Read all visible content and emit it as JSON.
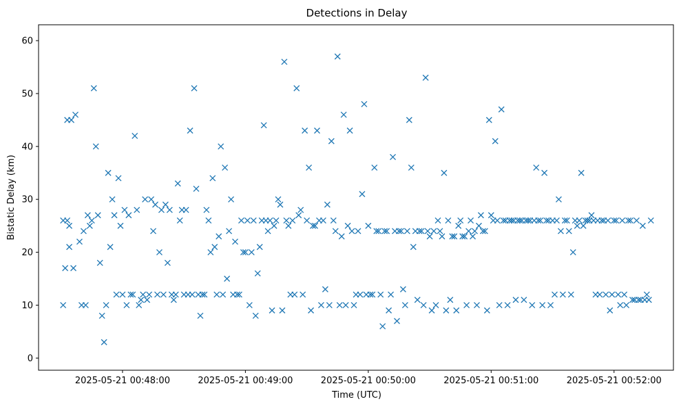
{
  "chart_data": {
    "type": "scatter",
    "title": "Detections in Delay",
    "xlabel": "Time (UTC)",
    "ylabel": "Bistatic Delay (km)",
    "marker": "x",
    "color": "#1f77b4",
    "grid": false,
    "legend": "none",
    "xlim": [
      "2025-05-21 00:47:19",
      "2025-05-21 00:52:29"
    ],
    "ylim": [
      -2.3,
      63
    ],
    "x_ticks": [
      "2025-05-21 00:48:00",
      "2025-05-21 00:49:00",
      "2025-05-21 00:50:00",
      "2025-05-21 00:51:00",
      "2025-05-21 00:52:00"
    ],
    "y_ticks": [
      0,
      10,
      20,
      30,
      40,
      50,
      60
    ],
    "series": [
      {
        "x": [
          "00:47:31",
          "00:47:31",
          "00:47:32",
          "00:47:33",
          "00:47:33",
          "00:47:34",
          "00:47:34",
          "00:47:35",
          "00:47:36",
          "00:47:37",
          "00:47:39",
          "00:47:40",
          "00:47:41",
          "00:47:42",
          "00:47:43",
          "00:47:44",
          "00:47:45",
          "00:47:46",
          "00:47:47",
          "00:47:48",
          "00:47:49",
          "00:47:50",
          "00:47:51",
          "00:47:52",
          "00:47:53",
          "00:47:54",
          "00:47:55",
          "00:47:56",
          "00:47:57",
          "00:47:58",
          "00:47:59",
          "00:48:00",
          "00:48:01",
          "00:48:02",
          "00:48:03",
          "00:48:04",
          "00:48:05",
          "00:48:06",
          "00:48:07",
          "00:48:08",
          "00:48:09",
          "00:48:10",
          "00:48:11",
          "00:48:12",
          "00:48:13",
          "00:48:14",
          "00:48:15",
          "00:48:16",
          "00:48:17",
          "00:48:18",
          "00:48:19",
          "00:48:20",
          "00:48:21",
          "00:48:22",
          "00:48:23",
          "00:48:24",
          "00:48:25",
          "00:48:26",
          "00:48:27",
          "00:48:28",
          "00:48:29",
          "00:48:30",
          "00:48:31",
          "00:48:32",
          "00:48:33",
          "00:48:34",
          "00:48:35",
          "00:48:36",
          "00:48:37",
          "00:48:38",
          "00:48:39",
          "00:48:40",
          "00:48:41",
          "00:48:42",
          "00:48:43",
          "00:48:44",
          "00:48:45",
          "00:48:46",
          "00:48:47",
          "00:48:48",
          "00:48:49",
          "00:48:50",
          "00:48:51",
          "00:48:52",
          "00:48:53",
          "00:48:54",
          "00:48:55",
          "00:48:56",
          "00:48:57",
          "00:48:58",
          "00:48:59",
          "00:49:00",
          "00:49:01",
          "00:49:02",
          "00:49:03",
          "00:49:04",
          "00:49:05",
          "00:49:06",
          "00:49:07",
          "00:49:08",
          "00:49:09",
          "00:49:10",
          "00:49:11",
          "00:49:12",
          "00:49:13",
          "00:49:14",
          "00:49:15",
          "00:49:16",
          "00:49:17",
          "00:49:18",
          "00:49:19",
          "00:49:20",
          "00:49:21",
          "00:49:22",
          "00:49:23",
          "00:49:24",
          "00:49:25",
          "00:49:26",
          "00:49:27",
          "00:49:28",
          "00:49:29",
          "00:49:30",
          "00:49:31",
          "00:49:32",
          "00:49:33",
          "00:49:34",
          "00:49:35",
          "00:49:36",
          "00:49:37",
          "00:49:38",
          "00:49:39",
          "00:49:40",
          "00:49:41",
          "00:49:42",
          "00:49:43",
          "00:49:44",
          "00:49:45",
          "00:49:46",
          "00:49:47",
          "00:49:48",
          "00:49:49",
          "00:49:50",
          "00:49:51",
          "00:49:52",
          "00:49:53",
          "00:49:54",
          "00:49:55",
          "00:49:56",
          "00:49:57",
          "00:49:58",
          "00:49:59",
          "00:50:00",
          "00:50:01",
          "00:50:02",
          "00:50:03",
          "00:50:04",
          "00:50:05",
          "00:50:06",
          "00:50:07",
          "00:50:08",
          "00:50:09",
          "00:50:10",
          "00:50:11",
          "00:50:12",
          "00:50:13",
          "00:50:14",
          "00:50:15",
          "00:50:16",
          "00:50:17",
          "00:50:18",
          "00:50:19",
          "00:50:20",
          "00:50:21",
          "00:50:22",
          "00:50:23",
          "00:50:24",
          "00:50:25",
          "00:50:26",
          "00:50:27",
          "00:50:28",
          "00:50:29",
          "00:50:30",
          "00:50:31",
          "00:50:32",
          "00:50:33",
          "00:50:34",
          "00:50:35",
          "00:50:36",
          "00:50:37",
          "00:50:38",
          "00:50:39",
          "00:50:40",
          "00:50:41",
          "00:50:42",
          "00:50:43",
          "00:50:44",
          "00:50:45",
          "00:50:46",
          "00:50:47",
          "00:50:48",
          "00:50:49",
          "00:50:50",
          "00:50:51",
          "00:50:52",
          "00:50:53",
          "00:50:54",
          "00:50:55",
          "00:50:56",
          "00:50:57",
          "00:50:58",
          "00:50:59",
          "00:51:00",
          "00:51:01",
          "00:51:02",
          "00:51:03",
          "00:51:04",
          "00:51:05",
          "00:51:06",
          "00:51:07",
          "00:51:08",
          "00:51:09",
          "00:51:10",
          "00:51:11",
          "00:51:12",
          "00:51:13",
          "00:51:14",
          "00:51:15",
          "00:51:16",
          "00:51:17",
          "00:51:18",
          "00:51:19",
          "00:51:20",
          "00:51:21",
          "00:51:22",
          "00:51:23",
          "00:51:24",
          "00:51:25",
          "00:51:26",
          "00:51:27",
          "00:51:28",
          "00:51:29",
          "00:51:30",
          "00:51:31",
          "00:51:32",
          "00:51:33",
          "00:51:34",
          "00:51:35",
          "00:51:36",
          "00:51:37",
          "00:51:38",
          "00:51:39",
          "00:51:40",
          "00:51:41",
          "00:51:42",
          "00:51:43",
          "00:51:44",
          "00:51:45",
          "00:51:46",
          "00:51:47",
          "00:51:48",
          "00:51:49",
          "00:51:50",
          "00:51:51",
          "00:51:52",
          "00:51:53",
          "00:51:54",
          "00:51:55",
          "00:51:56",
          "00:51:57",
          "00:51:58",
          "00:51:59",
          "00:52:00",
          "00:52:01",
          "00:52:02",
          "00:52:03",
          "00:52:04",
          "00:52:05",
          "00:52:06",
          "00:52:07",
          "00:52:08",
          "00:52:09",
          "00:52:10",
          "00:52:11",
          "00:52:12",
          "00:52:13",
          "00:52:14",
          "00:52:15",
          "00:52:16",
          "00:52:17",
          "00:52:18"
        ],
        "y": [
          10,
          26,
          17,
          45,
          26,
          21,
          25,
          45,
          17,
          46,
          22,
          10,
          24,
          10,
          27,
          25,
          26,
          51,
          40,
          27,
          18,
          8,
          3,
          10,
          35,
          21,
          30,
          27,
          12,
          34,
          25,
          12,
          28,
          10,
          27,
          12,
          12,
          42,
          28,
          10,
          11,
          12,
          30,
          11,
          12,
          30,
          24,
          29,
          12,
          20,
          28,
          12,
          29,
          18,
          28,
          12,
          11,
          12,
          33,
          26,
          28,
          12,
          28,
          12,
          43,
          12,
          51,
          32,
          12,
          8,
          12,
          12,
          28,
          26,
          20,
          34,
          21,
          12,
          23,
          40,
          12,
          36,
          15,
          24,
          30,
          12,
          22,
          12,
          12,
          26,
          20,
          20,
          26,
          10,
          20,
          26,
          8,
          16,
          21,
          26,
          44,
          26,
          24,
          26,
          9,
          25,
          26,
          30,
          29,
          9,
          56,
          26,
          25,
          12,
          26,
          12,
          51,
          27,
          28,
          12,
          43,
          26,
          36,
          9,
          25,
          25,
          43,
          26,
          10,
          26,
          13,
          29,
          10,
          41,
          26,
          24,
          57,
          10,
          23,
          46,
          10,
          25,
          43,
          24,
          10,
          12,
          24,
          12,
          31,
          48,
          12,
          25,
          12,
          12,
          36,
          24,
          24,
          12,
          6,
          24,
          24,
          9,
          12,
          38,
          24,
          7,
          24,
          24,
          13,
          10,
          24,
          45,
          36,
          21,
          24,
          11,
          24,
          24,
          10,
          53,
          24,
          23,
          9,
          24,
          10,
          26,
          24,
          23,
          35,
          9,
          26,
          11,
          23,
          23,
          9,
          25,
          26,
          23,
          23,
          10,
          24,
          26,
          23,
          24,
          10,
          25,
          27,
          24,
          24,
          9,
          45,
          27,
          26,
          41,
          26,
          10,
          47,
          26,
          26,
          10,
          26,
          26,
          26,
          11,
          26,
          26,
          26,
          11,
          26,
          26,
          26,
          10,
          26,
          36,
          26,
          26,
          10,
          35,
          26,
          26,
          10,
          26,
          12,
          26,
          30,
          24,
          12,
          26,
          26,
          24,
          12,
          20,
          26,
          25,
          26,
          35,
          25,
          26,
          26,
          26,
          27,
          26,
          12,
          26,
          12,
          26,
          26,
          12,
          26,
          9,
          12,
          26,
          26,
          12,
          10,
          26,
          12,
          10,
          26,
          26,
          11,
          11,
          26,
          11,
          11,
          25,
          11,
          12,
          11,
          26
        ]
      }
    ]
  }
}
